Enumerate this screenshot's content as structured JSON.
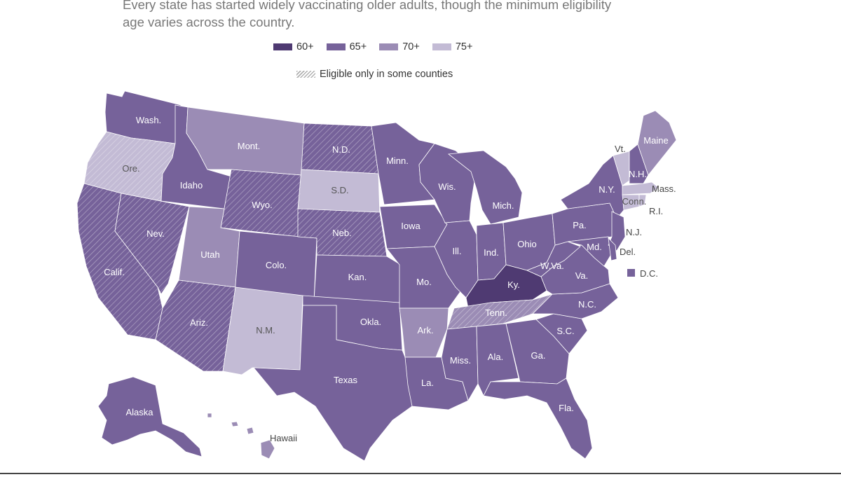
{
  "intro_text": "Every state has started widely vaccinating older adults, though the minimum eligibility age varies across the country.",
  "colors": {
    "age60": "#4f3a72",
    "age65": "#76629a",
    "age70": "#9b8cb5",
    "age75": "#c3bbd5",
    "hatch": "#ffffff"
  },
  "legend": {
    "items": [
      {
        "label": "60+",
        "color": "#4f3a72"
      },
      {
        "label": "65+",
        "color": "#76629a"
      },
      {
        "label": "70+",
        "color": "#9b8cb5"
      },
      {
        "label": "75+",
        "color": "#c3bbd5"
      }
    ],
    "hatch_label": "Eligible only in some counties"
  },
  "states": {
    "wash": {
      "label": "Wash.",
      "age": "65+"
    },
    "ore": {
      "label": "Ore.",
      "age": "75+",
      "partial": true
    },
    "calif": {
      "label": "Calif.",
      "age": "65+",
      "partial": true
    },
    "idaho": {
      "label": "Idaho",
      "age": "65+"
    },
    "nev": {
      "label": "Nev.",
      "age": "65+",
      "partial": true
    },
    "mont": {
      "label": "Mont.",
      "age": "70+"
    },
    "wyo": {
      "label": "Wyo.",
      "age": "65+",
      "partial": true
    },
    "utah": {
      "label": "Utah",
      "age": "70+"
    },
    "colo": {
      "label": "Colo.",
      "age": "65+"
    },
    "ariz": {
      "label": "Ariz.",
      "age": "65+",
      "partial": true
    },
    "nm": {
      "label": "N.M.",
      "age": "75+"
    },
    "nd": {
      "label": "N.D.",
      "age": "65+",
      "partial": true
    },
    "sd": {
      "label": "S.D.",
      "age": "75+"
    },
    "neb": {
      "label": "Neb.",
      "age": "65+",
      "partial": true
    },
    "kan": {
      "label": "Kan.",
      "age": "65+"
    },
    "okla": {
      "label": "Okla.",
      "age": "65+"
    },
    "texas": {
      "label": "Texas",
      "age": "65+"
    },
    "minn": {
      "label": "Minn.",
      "age": "65+"
    },
    "iowa": {
      "label": "Iowa",
      "age": "65+"
    },
    "mo": {
      "label": "Mo.",
      "age": "65+"
    },
    "ark": {
      "label": "Ark.",
      "age": "70+"
    },
    "la": {
      "label": "La.",
      "age": "65+"
    },
    "wis": {
      "label": "Wis.",
      "age": "65+"
    },
    "ill": {
      "label": "Ill.",
      "age": "65+"
    },
    "mich": {
      "label": "Mich.",
      "age": "65+"
    },
    "ind": {
      "label": "Ind.",
      "age": "65+"
    },
    "ohio": {
      "label": "Ohio",
      "age": "65+"
    },
    "ky": {
      "label": "Ky.",
      "age": "60+"
    },
    "tenn": {
      "label": "Tenn.",
      "age": "70+",
      "partial": true
    },
    "miss": {
      "label": "Miss.",
      "age": "65+"
    },
    "ala": {
      "label": "Ala.",
      "age": "65+"
    },
    "ga": {
      "label": "Ga.",
      "age": "65+"
    },
    "fla": {
      "label": "Fla.",
      "age": "65+"
    },
    "sc": {
      "label": "S.C.",
      "age": "65+"
    },
    "nc": {
      "label": "N.C.",
      "age": "65+"
    },
    "va": {
      "label": "Va.",
      "age": "65+"
    },
    "wva": {
      "label": "W.Va.",
      "age": "65+"
    },
    "pa": {
      "label": "Pa.",
      "age": "65+"
    },
    "ny": {
      "label": "N.Y.",
      "age": "65+"
    },
    "md": {
      "label": "Md.",
      "age": "65+"
    },
    "nj": {
      "label": "N.J.",
      "age": "65+"
    },
    "del": {
      "label": "Del.",
      "age": "65+"
    },
    "dc": {
      "label": "D.C.",
      "age": "65+"
    },
    "vt": {
      "label": "Vt.",
      "age": "75+"
    },
    "nh": {
      "label": "N.H.",
      "age": "65+"
    },
    "maine": {
      "label": "Maine",
      "age": "70+"
    },
    "mass": {
      "label": "Mass.",
      "age": "75+"
    },
    "conn": {
      "label": "Conn.",
      "age": "75+"
    },
    "ri": {
      "label": "R.I.",
      "age": "75+"
    },
    "alaska": {
      "label": "Alaska",
      "age": "65+"
    },
    "hawaii": {
      "label": "Hawaii",
      "age": "70+"
    }
  }
}
